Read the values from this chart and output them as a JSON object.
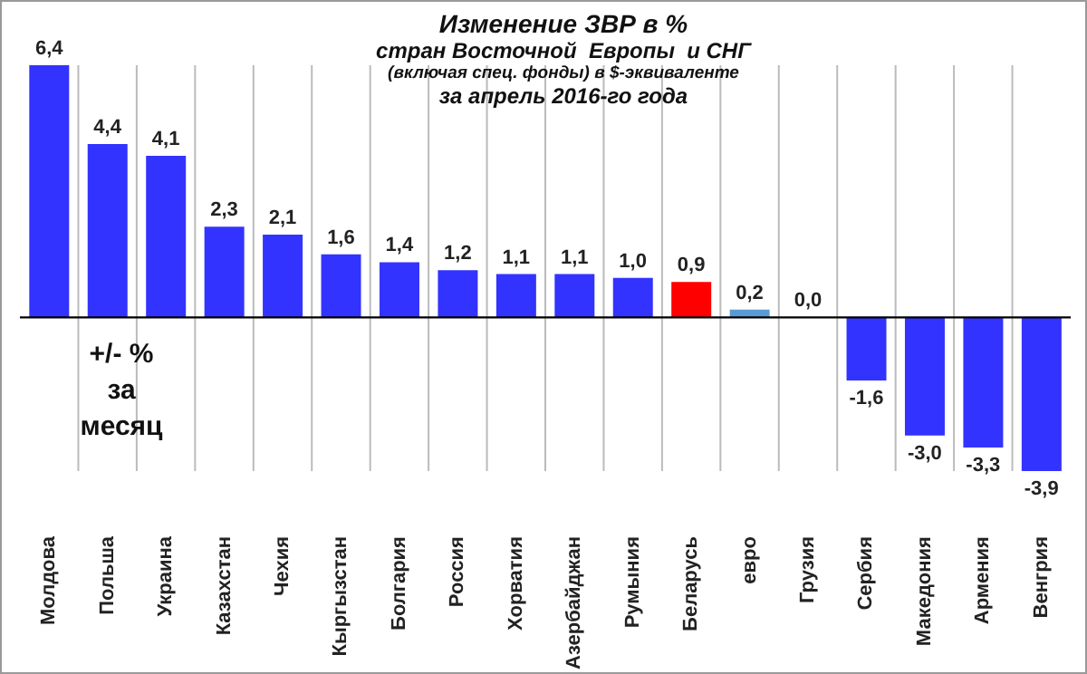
{
  "chart_data": {
    "type": "bar",
    "title": "Изменение ЗВР в %",
    "subtitle": "стран Восточной  Европы  и СНГ\n(включая спец. фонды) в $-эквиваленте\nза апрель 2016-го года",
    "categories": [
      "Молдова",
      "Польша",
      "Украина",
      "Казахстан",
      "Чехия",
      "Кыргызстан",
      "Болгария",
      "Россия",
      "Хорватия",
      "Азербайджан",
      "Румыния",
      "Беларусь",
      "евро",
      "Грузия",
      "Сербия",
      "Македония",
      "Армения",
      "Венгрия"
    ],
    "values": [
      6.4,
      4.4,
      4.1,
      2.3,
      2.1,
      1.6,
      1.4,
      1.2,
      1.1,
      1.1,
      1.0,
      0.9,
      0.2,
      0.0,
      -1.6,
      -3.0,
      -3.3,
      -3.9
    ],
    "colors": [
      "#3333ff",
      "#3333ff",
      "#3333ff",
      "#3333ff",
      "#3333ff",
      "#3333ff",
      "#3333ff",
      "#3333ff",
      "#3333ff",
      "#3333ff",
      "#3333ff",
      "#ff0000",
      "#5b9bd5",
      "#1f1f8f",
      "#3333ff",
      "#3333ff",
      "#3333ff",
      "#3333ff"
    ],
    "value_labels": [
      "6,4",
      "4,4",
      "4,1",
      "2,3",
      "2,1",
      "1,6",
      "1,4",
      "1,2",
      "1,1",
      "1,1",
      "1,0",
      "0,9",
      "0,2",
      "0,0",
      "-1,6",
      "-3,0",
      "-3,3",
      "-3,9"
    ],
    "annotations": [
      "+/- % за месяц"
    ],
    "grid": "x"
  }
}
